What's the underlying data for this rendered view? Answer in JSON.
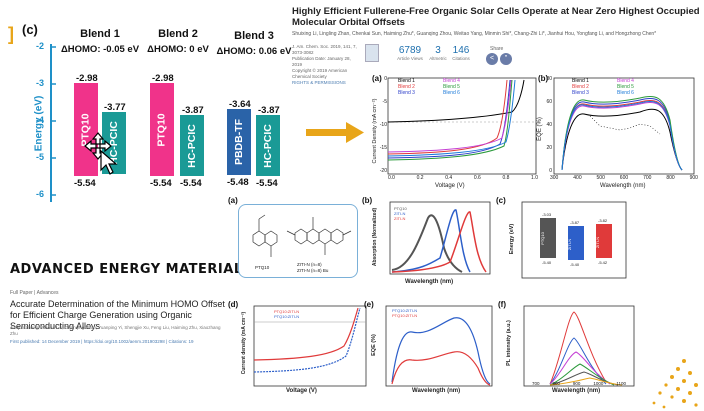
{
  "colors": {
    "pink": "#f0338a",
    "teal": "#1a9a96",
    "blue": "#2a63a8",
    "axis_blue": "#1e90c8",
    "arrow": "#e8a519"
  },
  "corner_mark": "]",
  "energy_panel": {
    "label": "(c)",
    "ylabel": "Energy (eV)",
    "ticks": [
      "-2",
      "-3",
      "-4",
      "-5",
      "-6"
    ],
    "blends": [
      {
        "title": "Blend 1",
        "delta": "ΔHOMO: -0.05 eV",
        "donor": {
          "name": "PTQ10",
          "lumo": "-2.98",
          "homo": "-5.54"
        },
        "acceptor": {
          "name": "HC-PCIC",
          "lumo": "-3.77",
          "homo": "-5.49"
        }
      },
      {
        "title": "Blend 2",
        "delta": "ΔHOMO: 0 eV",
        "donor": {
          "name": "PTQ10",
          "lumo": "-2.98",
          "homo": "-5.54"
        },
        "acceptor": {
          "name": "HC-PCIC",
          "lumo": "-3.87",
          "homo": "-5.54"
        }
      },
      {
        "title": "Blend 3",
        "delta": "ΔHOMO: 0.06 eV",
        "donor": {
          "name": "PBDB-TF",
          "lumo": "-3.64",
          "homo": "-5.48"
        },
        "acceptor": {
          "name": "HC-PCIC",
          "lumo": "-3.87",
          "homo": "-5.54"
        }
      }
    ]
  },
  "paper": {
    "title": "Highly Efficient Fullerene-Free Organic Solar Cells Operate at Near Zero Highest Occupied Molecular Orbital Offsets",
    "authors": "Shuixing Li, Lingling Zhan, Chenkai Sun, Haiming Zhu*, Guanqing Zhou, Weitao Yang, Minmin Shi*, Chang-Zhi Li*, Jianhui Hou, Yongfang Li, and Hongzhong Chen*",
    "journal": "J. Am. Chem. Soc. 2019, 141, 7, 3073-3082",
    "received": "Publication Date: January 28, 2019",
    "copyright": "Copyright © 2019 American Chemical Society",
    "rights": "RIGHTS & PERMISSIONS",
    "metrics": [
      {
        "value": "6789",
        "label": "Article Views"
      },
      {
        "value": "3",
        "label": "Altmetric"
      },
      {
        "value": "146",
        "label": "Citations"
      }
    ],
    "share": "Share"
  },
  "aem": {
    "logo": "ADVANCED ENERGY MATERIALS",
    "meta": "Full Paper  |  Advances",
    "title": "Accurate Determination of the Minimum HOMO Offset for Efficient Charge Generation using Organic Semiconducting Alloys",
    "authors": "Jianjun Zhang, Wenrui Liu, Guanqing Zhou, Yuanping Yi, Shengjie Xu, Feng Liu, Haiming Zhu, Xiaozhang Zhu",
    "links": "First published: 14 December 2019  |  https://doi.org/10.1002/aenm.201903298  |  Citations: 19"
  },
  "jv_a": {
    "label": "(a)",
    "xlabel": "Voltage (V)",
    "ylabel": "Current Density (mA cm⁻²)",
    "xticks": [
      "0.0",
      "0.2",
      "0.4",
      "0.6",
      "0.8",
      "1.0"
    ],
    "yticks": [
      "0",
      "-5",
      "-10",
      "-15",
      "-20"
    ],
    "legend": [
      "Blend 1",
      "Blend 2",
      "Blend 3",
      "Blend 4",
      "Blend 5",
      "Blend 6"
    ]
  },
  "eqe_b": {
    "label": "(b)",
    "xlabel": "Wavelength (nm)",
    "ylabel": "EQE (%)",
    "xticks": [
      "300",
      "400",
      "500",
      "600",
      "700",
      "800",
      "900"
    ],
    "yticks": [
      "0",
      "20",
      "40",
      "60",
      "80"
    ],
    "legend": [
      "Blend 1",
      "Blend 2",
      "Blend 3",
      "Blend 4",
      "Blend 5",
      "Blend 6"
    ]
  },
  "structures": {
    "label": "(a)",
    "names": [
      "PTQ10",
      "ZITI-N (n=8)",
      "ZITI-N (n=8) Bu"
    ]
  },
  "abs_b": {
    "label": "(b)",
    "xlabel": "Wavelength (nm)",
    "ylabel": "Absorption (Normalized)",
    "legend": [
      "PTQ10",
      "ZITI-N",
      "ZITI-N"
    ]
  },
  "energy_c": {
    "label": "(c)",
    "ylabel": "Energy (eV)",
    "bars": [
      {
        "name": "PTQ10",
        "lumo": "-3.03",
        "homo": "-5.40"
      },
      {
        "name": "ZITI-N",
        "lumo": "-3.87",
        "homo": "-5.40"
      },
      {
        "name": "ZITI-N",
        "lumo": "-3.82",
        "homo": "-5.42"
      }
    ]
  },
  "jv_d": {
    "label": "(d)",
    "xlabel": "Voltage (V)",
    "ylabel": "Current density (mA cm⁻²)",
    "legend": [
      "PTQ10:ZITI-N",
      "PTQ10:ZITI-N"
    ]
  },
  "eqe_e": {
    "label": "(e)",
    "xlabel": "Wavelength (nm)",
    "ylabel": "EQE (%)",
    "legend": [
      "PTQ10:ZITI-N",
      "PTQ10:ZITI-N"
    ]
  },
  "pl_f": {
    "label": "(f)",
    "xlabel": "Wavelength (nm)",
    "ylabel": "PL intensity (a.u.)",
    "xticks": [
      "700",
      "800",
      "900",
      "1000",
      "1100"
    ]
  }
}
